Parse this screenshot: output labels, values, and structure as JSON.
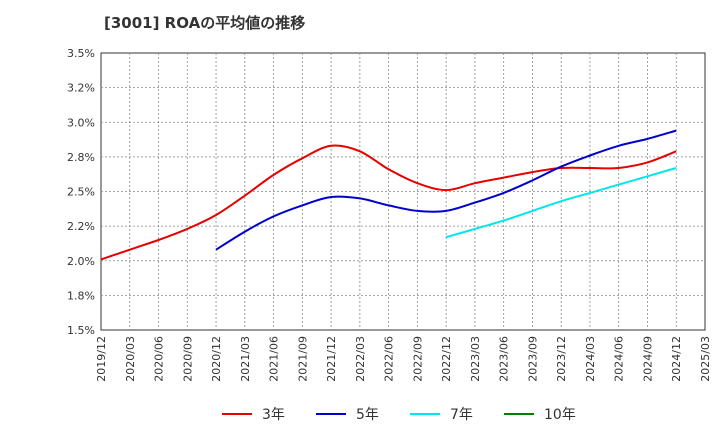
{
  "title": "[3001]  ROAの平均値の推移",
  "chart_data": {
    "type": "line",
    "title": "[3001]  ROAの平均値の推移",
    "xlabel": "",
    "ylabel": "",
    "ylim": [
      1.5,
      3.5
    ],
    "y_ticks": [
      "3.5%",
      "3.2%",
      "3.0%",
      "2.8%",
      "2.5%",
      "2.2%",
      "2.0%",
      "1.8%",
      "1.5%"
    ],
    "y_tick_values": [
      3.5,
      3.25,
      3.0,
      2.75,
      2.5,
      2.25,
      2.0,
      1.75,
      1.5
    ],
    "x_ticks": [
      "2019/12",
      "2020/03",
      "2020/06",
      "2020/09",
      "2020/12",
      "2021/03",
      "2021/06",
      "2021/09",
      "2021/12",
      "2022/03",
      "2022/06",
      "2022/09",
      "2022/12",
      "2023/03",
      "2023/06",
      "2023/09",
      "2023/12",
      "2024/03",
      "2024/06",
      "2024/09",
      "2024/12",
      "2025/03"
    ],
    "grid": true,
    "legend_position": "bottom",
    "series": [
      {
        "name": "3年",
        "color": "#e60000",
        "x": [
          "2019/12",
          "2020/03",
          "2020/06",
          "2020/09",
          "2020/12",
          "2021/03",
          "2021/06",
          "2021/09",
          "2021/12",
          "2022/03",
          "2022/06",
          "2022/09",
          "2022/12",
          "2023/03",
          "2023/06",
          "2023/09",
          "2023/12",
          "2024/03",
          "2024/06",
          "2024/09",
          "2024/12"
        ],
        "values": [
          2.01,
          2.08,
          2.15,
          2.23,
          2.33,
          2.47,
          2.62,
          2.74,
          2.83,
          2.79,
          2.66,
          2.56,
          2.51,
          2.56,
          2.6,
          2.64,
          2.67,
          2.67,
          2.67,
          2.71,
          2.79
        ]
      },
      {
        "name": "5年",
        "color": "#0000cc",
        "x": [
          "2020/12",
          "2021/03",
          "2021/06",
          "2021/09",
          "2021/12",
          "2022/03",
          "2022/06",
          "2022/09",
          "2022/12",
          "2023/03",
          "2023/06",
          "2023/09",
          "2023/12",
          "2024/03",
          "2024/06",
          "2024/09",
          "2024/12"
        ],
        "values": [
          2.08,
          2.21,
          2.32,
          2.4,
          2.46,
          2.45,
          2.4,
          2.36,
          2.36,
          2.42,
          2.49,
          2.58,
          2.68,
          2.76,
          2.83,
          2.88,
          2.94
        ]
      },
      {
        "name": "7年",
        "color": "#00e5ee",
        "x": [
          "2022/12",
          "2023/03",
          "2023/06",
          "2023/09",
          "2023/12",
          "2024/03",
          "2024/06",
          "2024/09",
          "2024/12"
        ],
        "values": [
          2.17,
          2.23,
          2.29,
          2.36,
          2.43,
          2.49,
          2.55,
          2.61,
          2.67
        ]
      },
      {
        "name": "10年",
        "color": "#008000",
        "x": [],
        "values": []
      }
    ]
  }
}
